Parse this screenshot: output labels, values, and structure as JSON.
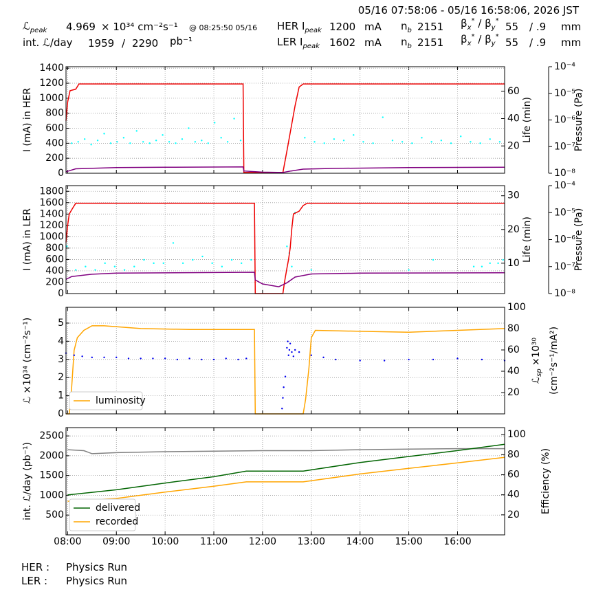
{
  "header": {
    "time_range": "05/16 07:58:06 - 05/16 16:58:06, 2026 JST",
    "lumi_peak": {
      "symbol": "ℒ",
      "sub": "peak",
      "value": "4.969",
      "unit": "× 10³⁴ cm⁻²s⁻¹",
      "time": "@ 08:25:50 05/16"
    },
    "int_lumi": {
      "label": "int. ℒ/day",
      "recorded": "1959",
      "sep": "/",
      "delivered": "2290",
      "unit": "pb⁻¹"
    },
    "rings": [
      {
        "label": "HER I",
        "sub": "peak",
        "current": "1200",
        "current_unit": "mA",
        "nb_label": "n",
        "nb_sub": "b",
        "nb": "2151",
        "beta_a": "β",
        "beta_a_sub": "x",
        "beta_a_sup": "*",
        "beta_b": " / β",
        "beta_b_sub": "y",
        "beta_b_sup": "*",
        "beta_x": "55",
        "beta_y": "/ .9",
        "beta_unit": "mm"
      },
      {
        "label": "LER I",
        "sub": "peak",
        "current": "1602",
        "current_unit": "mA",
        "nb_label": "n",
        "nb_sub": "b",
        "nb": "2151",
        "beta_a": "β",
        "beta_a_sub": "x",
        "beta_a_sup": "*",
        "beta_b": " / β",
        "beta_b_sub": "y",
        "beta_b_sup": "*",
        "beta_x": "55",
        "beta_y": "/ .9",
        "beta_unit": "mm"
      }
    ]
  },
  "footer": [
    {
      "ring": "HER :",
      "mode": "Physics Run"
    },
    {
      "ring": "LER :",
      "mode": "Physics Run"
    }
  ],
  "chart_data": [
    {
      "type": "line",
      "ylabel": "I (mA) in HER",
      "y2label": "Life (min)",
      "y3label": "Pressure (Pa)",
      "grid": true,
      "xlim": [
        "07:58",
        "16:58"
      ],
      "xticks": [
        "08:00",
        "09:00",
        "10:00",
        "11:00",
        "12:00",
        "13:00",
        "14:00",
        "15:00",
        "16:00"
      ],
      "ylim": [
        0,
        1420
      ],
      "yticks": [
        0,
        200,
        400,
        600,
        800,
        1000,
        1200,
        1400
      ],
      "y2lim": [
        0,
        78
      ],
      "y2ticks": [
        20,
        40,
        60
      ],
      "y3log": true,
      "y3lim": [
        1e-08,
        0.0001
      ],
      "y3ticks": [
        {
          "value": 1e-08,
          "label": "10⁻⁸"
        },
        {
          "value": 1e-07,
          "label": "10⁻⁷"
        },
        {
          "value": 1e-06,
          "label": "10⁻⁶"
        },
        {
          "value": 1e-05,
          "label": "10⁻⁵"
        },
        {
          "value": 0.0001,
          "label": "10⁻⁴"
        }
      ],
      "series": [
        {
          "color": "#00ffff",
          "type": "scatter",
          "axis": "y2",
          "x": [
            "08:05",
            "08:13",
            "08:21",
            "08:29",
            "08:37",
            "08:45",
            "08:53",
            "09:01",
            "09:09",
            "09:17",
            "09:25",
            "09:33",
            "09:41",
            "09:49",
            "09:57",
            "10:05",
            "10:13",
            "10:21",
            "10:29",
            "10:37",
            "10:45",
            "10:53",
            "11:01",
            "11:09",
            "11:17",
            "11:25",
            "11:33",
            "12:52",
            "13:04",
            "13:16",
            "13:28",
            "13:40",
            "13:52",
            "14:04",
            "14:16",
            "14:28",
            "14:40",
            "14:52",
            "15:04",
            "15:16",
            "15:28",
            "15:40",
            "15:52",
            "16:04",
            "16:16",
            "16:28",
            "16:40",
            "16:52"
          ],
          "values": [
            22,
            23,
            25,
            21,
            24,
            29,
            22,
            23,
            26,
            22,
            31,
            23,
            22,
            24,
            28,
            23,
            22,
            25,
            33,
            23,
            24,
            22,
            37,
            26,
            23,
            40,
            24,
            26,
            23,
            22,
            25,
            24,
            28,
            23,
            22,
            41,
            24,
            23,
            22,
            26,
            23,
            24,
            22,
            27,
            23,
            22,
            25,
            23
          ]
        },
        {
          "color": "#ee0000",
          "type": "line",
          "x": [
            "07:58",
            "08:00",
            "08:03",
            "08:10",
            "08:14",
            "11:36",
            "11:37",
            "12:25",
            "12:30",
            "12:35",
            "12:40",
            "12:45",
            "12:50",
            "16:58"
          ],
          "values": [
            700,
            950,
            1100,
            1120,
            1190,
            1190,
            10,
            10,
            300,
            600,
            900,
            1150,
            1190,
            1190
          ]
        },
        {
          "color": "#800080",
          "type": "line",
          "x": [
            "07:58",
            "08:10",
            "09:00",
            "10:00",
            "11:36",
            "11:37",
            "12:00",
            "12:25",
            "12:35",
            "12:50",
            "13:30",
            "15:00",
            "16:58"
          ],
          "values": [
            20,
            60,
            75,
            80,
            85,
            30,
            15,
            10,
            30,
            55,
            65,
            75,
            80
          ]
        }
      ]
    },
    {
      "type": "line",
      "ylabel": "I (mA) in LER",
      "y2label": "Life (min)",
      "y3label": "Pressure (Pa)",
      "grid": true,
      "xlim": [
        "07:58",
        "16:58"
      ],
      "xticks": [
        "08:00",
        "09:00",
        "10:00",
        "11:00",
        "12:00",
        "13:00",
        "14:00",
        "15:00",
        "16:00"
      ],
      "ylim": [
        0,
        1900
      ],
      "yticks": [
        0,
        200,
        400,
        600,
        800,
        1000,
        1200,
        1400,
        1600,
        1800
      ],
      "y2lim": [
        1,
        33
      ],
      "y2ticks": [
        10,
        20,
        30
      ],
      "y3log": true,
      "y3lim": [
        1e-08,
        0.0001
      ],
      "y3ticks": [
        {
          "value": 1e-08,
          "label": "10⁻⁸"
        },
        {
          "value": 1e-07,
          "label": "10⁻⁷"
        },
        {
          "value": 1e-06,
          "label": "10⁻⁶"
        },
        {
          "value": 1e-05,
          "label": "10⁻⁵"
        },
        {
          "value": 0.0001,
          "label": "10⁻⁴"
        }
      ],
      "series": [
        {
          "color": "#00ffff",
          "type": "scatter",
          "axis": "y2",
          "x": [
            "07:59",
            "08:10",
            "08:22",
            "08:34",
            "08:46",
            "08:58",
            "09:10",
            "09:22",
            "09:34",
            "09:46",
            "09:58",
            "10:10",
            "10:22",
            "10:34",
            "10:46",
            "10:58",
            "11:10",
            "11:22",
            "11:34",
            "11:46",
            "12:30",
            "12:33",
            "12:36",
            "12:40",
            "13:00",
            "15:00",
            "15:30",
            "16:20",
            "16:30",
            "16:40",
            "16:50",
            "16:56"
          ],
          "values": [
            15,
            8,
            9,
            8,
            10,
            9,
            8,
            9,
            11,
            10,
            10,
            16,
            10,
            11,
            12,
            10,
            9,
            11,
            10,
            11,
            15,
            13,
            9,
            25,
            8,
            8,
            11,
            9,
            9,
            10,
            10,
            11
          ]
        },
        {
          "color": "#ee0000",
          "type": "line",
          "x": [
            "07:58",
            "08:00",
            "08:02",
            "08:06",
            "08:10",
            "11:50",
            "11:51",
            "12:25",
            "12:27",
            "12:30",
            "12:32",
            "12:34",
            "12:36",
            "12:38",
            "12:45",
            "12:50",
            "12:55",
            "16:58"
          ],
          "values": [
            900,
            1200,
            1400,
            1500,
            1590,
            1590,
            0,
            0,
            200,
            450,
            600,
            800,
            1150,
            1400,
            1450,
            1550,
            1590,
            1590
          ]
        },
        {
          "color": "#800080",
          "type": "line",
          "x": [
            "07:58",
            "08:05",
            "08:30",
            "09:00",
            "11:50",
            "11:51",
            "12:00",
            "12:20",
            "12:30",
            "12:40",
            "13:00",
            "14:00",
            "16:58"
          ],
          "values": [
            250,
            300,
            340,
            360,
            375,
            240,
            170,
            120,
            190,
            290,
            345,
            360,
            365
          ]
        }
      ]
    },
    {
      "type": "line",
      "ylabel": "ℒ ×10³⁴ (cm⁻²s⁻¹)",
      "y2label": {
        "symbol": "ℒ",
        "sub": "sp",
        "rest": " ×10³⁰",
        "line2": "(cm⁻²s⁻¹/mA²)"
      },
      "grid": true,
      "legend": "lower left",
      "xlim": [
        "07:58",
        "16:58"
      ],
      "xticks": [
        "08:00",
        "09:00",
        "10:00",
        "11:00",
        "12:00",
        "13:00",
        "14:00",
        "15:00",
        "16:00"
      ],
      "ylim": [
        0,
        5.87
      ],
      "yticks": [
        0,
        1,
        2,
        3,
        4,
        5
      ],
      "y2lim": [
        0,
        100
      ],
      "y2ticks": [
        20,
        40,
        60,
        80,
        100
      ],
      "series": [
        {
          "name": "luminosity",
          "color": "#ffa500",
          "type": "line",
          "x": [
            "07:58",
            "08:02",
            "08:05",
            "08:08",
            "08:12",
            "08:20",
            "08:30",
            "08:45",
            "09:30",
            "10:30",
            "11:50",
            "11:51",
            "12:50",
            "12:53",
            "12:57",
            "13:00",
            "13:05",
            "14:00",
            "15:00",
            "16:00",
            "16:58"
          ],
          "values": [
            0,
            0,
            1.5,
            3.5,
            4.2,
            4.6,
            4.85,
            4.85,
            4.7,
            4.65,
            4.65,
            0,
            0,
            0.8,
            2.5,
            4.2,
            4.6,
            4.55,
            4.5,
            4.6,
            4.7
          ]
        },
        {
          "color": "#0000ee",
          "type": "scatter",
          "axis": "y2",
          "x": [
            "07:58",
            "08:08",
            "08:18",
            "08:30",
            "08:45",
            "09:00",
            "09:15",
            "09:30",
            "09:45",
            "10:00",
            "10:15",
            "10:30",
            "10:45",
            "11:00",
            "11:15",
            "11:30",
            "11:40",
            "12:24",
            "12:25",
            "12:26",
            "12:28",
            "12:30",
            "12:31",
            "12:32",
            "12:33",
            "12:34",
            "12:36",
            "12:38",
            "12:40",
            "12:45",
            "13:00",
            "13:15",
            "13:30",
            "14:00",
            "14:30",
            "15:00",
            "15:30",
            "16:00",
            "16:30",
            "16:58"
          ],
          "values": [
            57,
            55,
            54,
            53,
            53,
            53,
            52,
            52,
            52,
            52,
            51,
            52,
            51,
            51,
            52,
            51,
            52,
            5,
            15,
            25,
            35,
            62,
            68,
            55,
            60,
            66,
            58,
            54,
            60,
            58,
            55,
            53,
            51,
            50,
            50,
            51,
            51,
            52,
            51,
            50
          ]
        }
      ]
    },
    {
      "type": "line",
      "ylabel": "int. ℒ/day (pb⁻¹)",
      "y2label": "Efficiency (%)",
      "grid": true,
      "legend": "lower left",
      "xtick_labels": true,
      "xlim": [
        "07:58",
        "16:58"
      ],
      "xticks": [
        "08:00",
        "09:00",
        "10:00",
        "11:00",
        "12:00",
        "13:00",
        "14:00",
        "15:00",
        "16:00"
      ],
      "ylim": [
        0,
        2710
      ],
      "yticks": [
        500,
        1000,
        1500,
        2000,
        2500
      ],
      "y2lim": [
        0,
        107
      ],
      "y2ticks": [
        20,
        40,
        60,
        80,
        100
      ],
      "series": [
        {
          "color": "#808080",
          "type": "line",
          "axis": "y2",
          "x": [
            "08:00",
            "08:20",
            "08:30",
            "09:00",
            "10:00",
            "11:00",
            "12:00",
            "13:00",
            "14:00",
            "15:00",
            "16:00",
            "16:58"
          ],
          "values": [
            85,
            84,
            81,
            82,
            83,
            83.5,
            84,
            84,
            85,
            85.5,
            86,
            86
          ]
        },
        {
          "name": "delivered",
          "color": "#006400",
          "type": "line",
          "x": [
            "08:00",
            "09:00",
            "10:00",
            "11:00",
            "11:40",
            "12:50",
            "14:00",
            "15:00",
            "16:00",
            "16:58"
          ],
          "values": [
            1010,
            1140,
            1310,
            1470,
            1610,
            1610,
            1830,
            1980,
            2130,
            2290
          ]
        },
        {
          "name": "recorded",
          "color": "#ffa500",
          "type": "line",
          "x": [
            "08:00",
            "09:00",
            "10:00",
            "11:00",
            "11:40",
            "12:50",
            "14:00",
            "15:00",
            "16:00",
            "16:58"
          ],
          "values": [
            850,
            920,
            1080,
            1230,
            1340,
            1340,
            1540,
            1680,
            1820,
            1959
          ]
        }
      ]
    }
  ]
}
